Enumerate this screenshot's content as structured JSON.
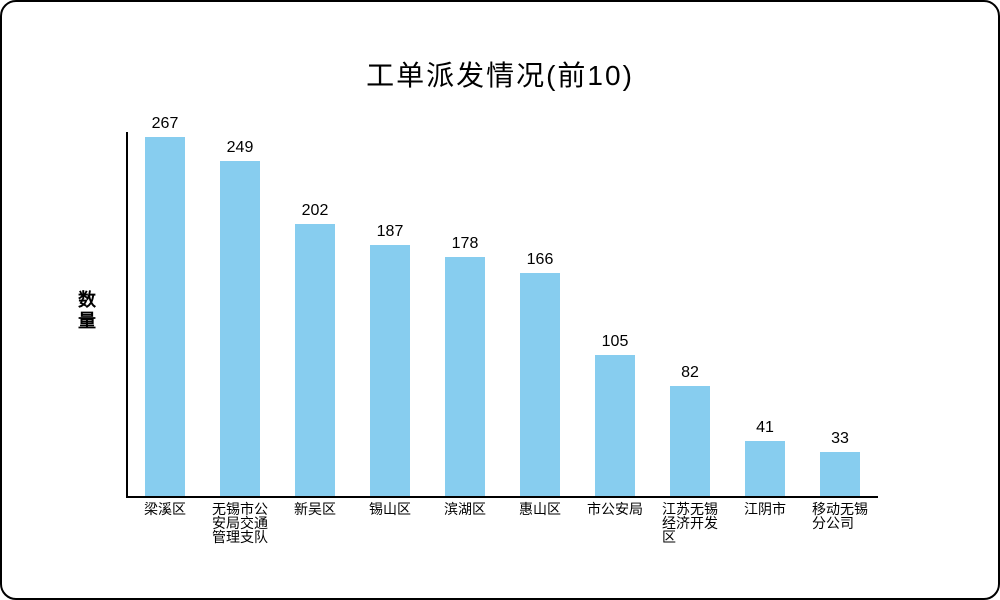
{
  "title": "工单派发情况(前10)",
  "y_axis_label": "数量",
  "chart_data": {
    "type": "bar",
    "title": "工单派发情况(前10)",
    "xlabel": "",
    "ylabel": "数量",
    "categories": [
      "梁溪区",
      "无锡市公安局交通管理支队",
      "新吴区",
      "锡山区",
      "滨湖区",
      "惠山区",
      "市公安局",
      "江苏无锡经济开发区",
      "江阴市",
      "移动无锡分公司"
    ],
    "categories_display": [
      "梁溪区",
      "无锡市公\n安局交通\n管理支队",
      "新吴区",
      "锡山区",
      "滨湖区",
      "惠山区",
      "市公安局",
      "江苏无锡\n经济开发\n区",
      "江阴市",
      "移动无锡\n分公司"
    ],
    "values": [
      267,
      249,
      202,
      187,
      178,
      166,
      105,
      82,
      41,
      33
    ],
    "ylim": [
      0,
      280
    ],
    "grid": false,
    "legend": "none",
    "bar_color": "#87CDEF",
    "axis_color": "#000000",
    "text_color": "#000000",
    "value_labels_shown": true
  }
}
